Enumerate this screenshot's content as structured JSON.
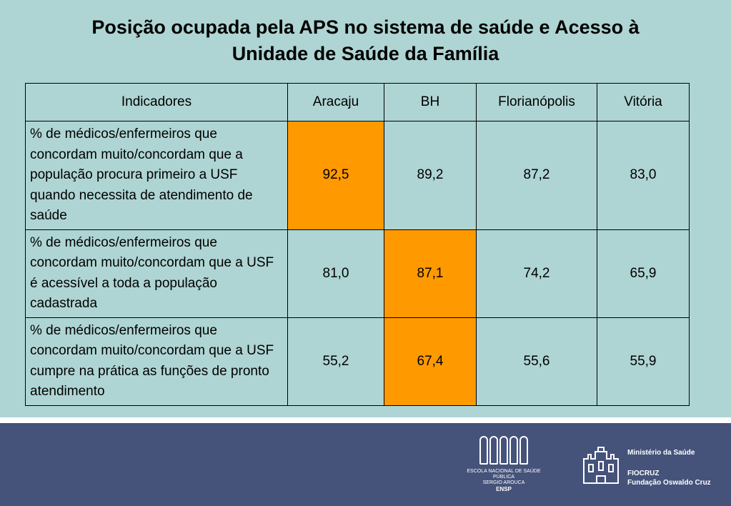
{
  "title": {
    "line1": "Posição ocupada pela APS no sistema de saúde e Acesso à",
    "line2": "Unidade de Saúde da Família"
  },
  "table": {
    "headers": [
      "Indicadores",
      "Aracaju",
      "BH",
      "Florianópolis",
      "Vitória"
    ],
    "rows": [
      {
        "indicator": "% de médicos/enfermeiros que concordam muito/concordam que a população procura primeiro a USF quando necessita de atendimento de saúde",
        "values": [
          "92,5",
          "89,2",
          "87,2",
          "83,0"
        ],
        "highlight_col": 1
      },
      {
        "indicator": "% de médicos/enfermeiros que concordam muito/concordam que a USF é acessível a toda a população cadastrada",
        "values": [
          "81,0",
          "87,1",
          "74,2",
          "65,9"
        ],
        "highlight_col": 2
      },
      {
        "indicator": "% de médicos/enfermeiros que concordam muito/concordam que a USF cumpre na prática as funções de pronto atendimento",
        "values": [
          "55,2",
          "67,4",
          "55,6",
          "55,9"
        ],
        "highlight_col": 2
      }
    ]
  },
  "colors": {
    "background": "#aed5d3",
    "highlight": "#ff9900",
    "footer": "#45527a"
  },
  "footer": {
    "ensp": {
      "name": "ESCOLA NACIONAL DE SAÚDE PÚBLICA",
      "subtitle": "SERGIO AROUCA",
      "abbr": "ENSP"
    },
    "ministry": "Ministério da Saúde",
    "fiocruz": "FIOCRUZ",
    "fiocruz_full": "Fundação Oswaldo Cruz"
  }
}
